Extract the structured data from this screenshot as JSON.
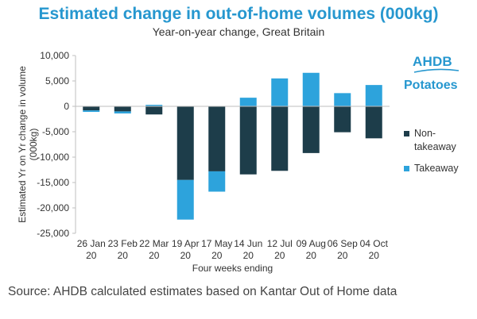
{
  "title": "Estimated change in out-of-home volumes (000kg)",
  "subtitle": "Year-on-year change, Great Britain",
  "logo": {
    "text": "AHDB",
    "tagline": "Potatoes"
  },
  "source": "Source: AHDB calculated estimates based on Kantar Out of Home data",
  "colors": {
    "non_takeaway": "#1d3d4a",
    "takeaway": "#2da3dc",
    "accent": "#2697cf"
  },
  "chart_data": {
    "type": "bar",
    "stacked": true,
    "ylabel": "Estimated Yr on Yr change in volume (000kg)",
    "ylabel_lines": [
      "Estimated Yr on Yr change in volume",
      "(000kg)"
    ],
    "xlabel": "Four weeks ending",
    "ylim": [
      -25000,
      10000
    ],
    "yticks": [
      10000,
      5000,
      0,
      -5000,
      -10000,
      -15000,
      -20000,
      -25000
    ],
    "ytick_labels": [
      "10,000",
      "5,000",
      "0",
      "-5,000",
      "-10,000",
      "-15,000",
      "-20,000",
      "-25,000"
    ],
    "categories": [
      [
        "26 Jan",
        "20"
      ],
      [
        "23 Feb",
        "20"
      ],
      [
        "22 Mar",
        "20"
      ],
      [
        "19 Apr",
        "20"
      ],
      [
        "17 May",
        "20"
      ],
      [
        "14 Jun",
        "20"
      ],
      [
        "12 Jul",
        "20"
      ],
      [
        "09 Aug",
        "20"
      ],
      [
        "06 Sep",
        "20"
      ],
      [
        "04 Oct",
        "20"
      ]
    ],
    "grid": false,
    "legend_position": "right",
    "series": [
      {
        "name": "Non-takeaway",
        "legend_lines": [
          "Non-",
          "takeaway"
        ],
        "values": [
          -800,
          -1000,
          -1600,
          -14500,
          -12800,
          -13400,
          -12700,
          -9200,
          -5100,
          -6300
        ]
      },
      {
        "name": "Takeaway",
        "legend_lines": [
          "Takeaway"
        ],
        "values": [
          -300,
          -400,
          300,
          -7800,
          -4000,
          1700,
          5500,
          6600,
          2600,
          4200
        ]
      }
    ]
  }
}
